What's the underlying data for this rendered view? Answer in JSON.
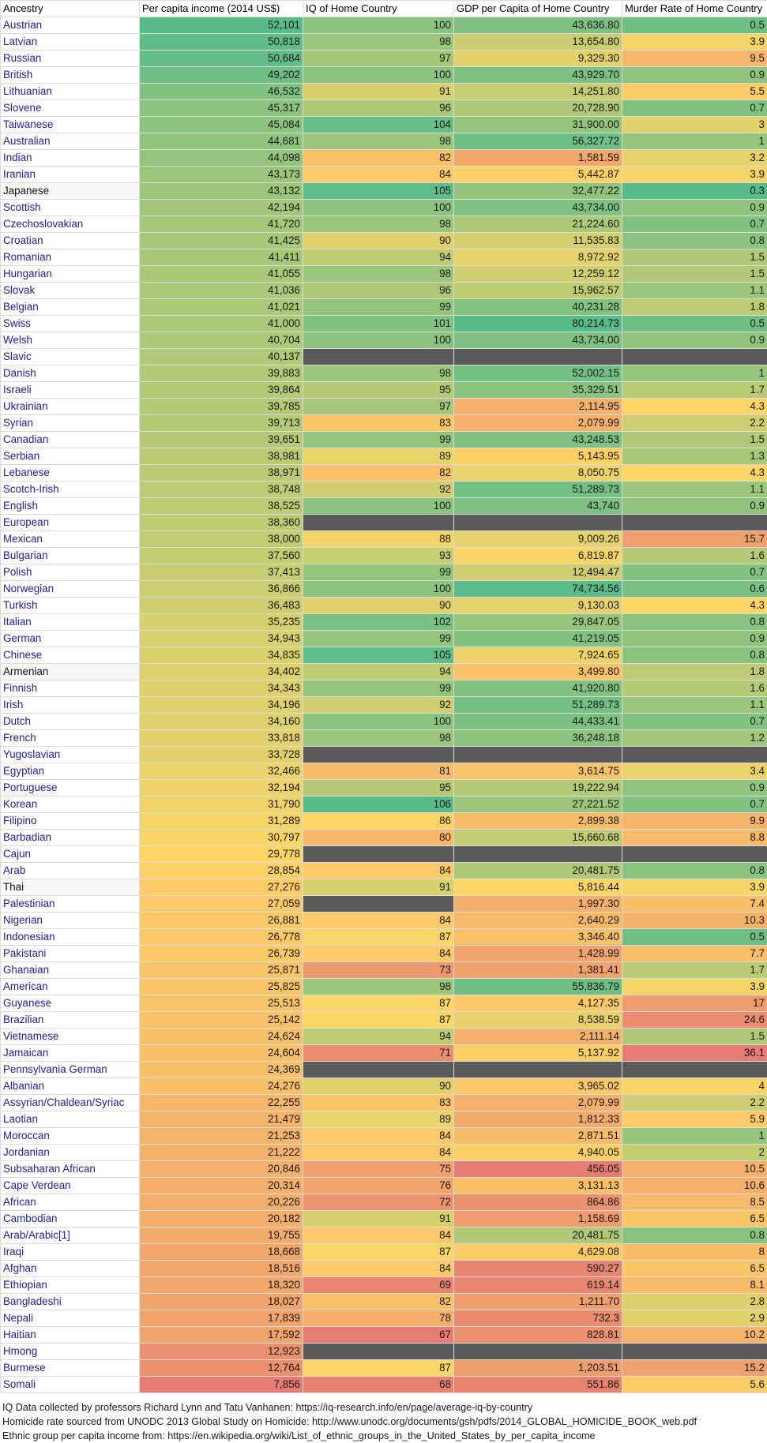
{
  "headers": [
    "Ancestry",
    "Per capita income (2014 US$)",
    "IQ of Home Country",
    "GDP per Capita of Home Country",
    "Murder Rate of Home Country"
  ],
  "rows": [
    {
      "ancestry": "Austrian",
      "income": "52,101",
      "iq": "100",
      "gdp": "43,636.80",
      "murder": "0.5"
    },
    {
      "ancestry": "Latvian",
      "income": "50,818",
      "iq": "98",
      "gdp": "13,654.80",
      "murder": "3.9"
    },
    {
      "ancestry": "Russian",
      "income": "50,684",
      "iq": "97",
      "gdp": "9,329.30",
      "murder": "9.5"
    },
    {
      "ancestry": "British",
      "income": "49,202",
      "iq": "100",
      "gdp": "43,929.70",
      "murder": "0.9"
    },
    {
      "ancestry": "Lithuanian",
      "income": "46,532",
      "iq": "91",
      "gdp": "14,251.80",
      "murder": "5.5"
    },
    {
      "ancestry": "Slovene",
      "income": "45,317",
      "iq": "96",
      "gdp": "20,728.90",
      "murder": "0.7"
    },
    {
      "ancestry": "Taiwanese",
      "income": "45,084",
      "iq": "104",
      "gdp": "31,900.00",
      "murder": "3"
    },
    {
      "ancestry": "Australian",
      "income": "44,681",
      "iq": "98",
      "gdp": "56,327.72",
      "murder": "1"
    },
    {
      "ancestry": "Indian",
      "income": "44,098",
      "iq": "82",
      "gdp": "1,581.59",
      "murder": "3.2"
    },
    {
      "ancestry": "Iranian",
      "income": "43,173",
      "iq": "84",
      "gdp": "5,442.87",
      "murder": "3.9"
    },
    {
      "ancestry": "Japanese",
      "income": "43,132",
      "iq": "105",
      "gdp": "32,477.22",
      "murder": "0.3"
    },
    {
      "ancestry": "Scottish",
      "income": "42,194",
      "iq": "100",
      "gdp": "43,734.00",
      "murder": "0.9"
    },
    {
      "ancestry": "Czechoslovakian",
      "income": "41,720",
      "iq": "98",
      "gdp": "21,224.60",
      "murder": "0.7"
    },
    {
      "ancestry": "Croatian",
      "income": "41,425",
      "iq": "90",
      "gdp": "11,535.83",
      "murder": "0.8"
    },
    {
      "ancestry": "Romanian",
      "income": "41,411",
      "iq": "94",
      "gdp": "8,972.92",
      "murder": "1.5"
    },
    {
      "ancestry": "Hungarian",
      "income": "41,055",
      "iq": "98",
      "gdp": "12,259.12",
      "murder": "1.5"
    },
    {
      "ancestry": "Slovak",
      "income": "41,036",
      "iq": "96",
      "gdp": "15,962.57",
      "murder": "1.1"
    },
    {
      "ancestry": "Belgian",
      "income": "41,021",
      "iq": "99",
      "gdp": "40,231.28",
      "murder": "1.8"
    },
    {
      "ancestry": "Swiss",
      "income": "41,000",
      "iq": "101",
      "gdp": "80,214.73",
      "murder": "0.5"
    },
    {
      "ancestry": "Welsh",
      "income": "40,704",
      "iq": "100",
      "gdp": "43,734.00",
      "murder": "0.9"
    },
    {
      "ancestry": "Slavic",
      "income": "40,137",
      "iq": null,
      "gdp": null,
      "murder": null
    },
    {
      "ancestry": "Danish",
      "income": "39,883",
      "iq": "98",
      "gdp": "52,002.15",
      "murder": "1"
    },
    {
      "ancestry": "Israeli",
      "income": "39,864",
      "iq": "95",
      "gdp": "35,329.51",
      "murder": "1.7"
    },
    {
      "ancestry": "Ukrainian",
      "income": "39,785",
      "iq": "97",
      "gdp": "2,114.95",
      "murder": "4.3"
    },
    {
      "ancestry": "Syrian",
      "income": "39,713",
      "iq": "83",
      "gdp": "2,079.99",
      "murder": "2.2"
    },
    {
      "ancestry": "Canadian",
      "income": "39,651",
      "iq": "99",
      "gdp": "43,248.53",
      "murder": "1.5"
    },
    {
      "ancestry": "Serbian",
      "income": "38,981",
      "iq": "89",
      "gdp": "5,143.95",
      "murder": "1.3"
    },
    {
      "ancestry": "Lebanese",
      "income": "38,971",
      "iq": "82",
      "gdp": "8,050.75",
      "murder": "4.3"
    },
    {
      "ancestry": "Scotch-Irish",
      "income": "38,748",
      "iq": "92",
      "gdp": "51,289.73",
      "murder": "1.1"
    },
    {
      "ancestry": "English",
      "income": "38,525",
      "iq": "100",
      "gdp": "43,740",
      "murder": "0.9"
    },
    {
      "ancestry": "European",
      "income": "38,360",
      "iq": null,
      "gdp": null,
      "murder": null
    },
    {
      "ancestry": "Mexican",
      "income": "38,000",
      "iq": "88",
      "gdp": "9,009.26",
      "murder": "15.7"
    },
    {
      "ancestry": "Bulgarian",
      "income": "37,560",
      "iq": "93",
      "gdp": "6,819.87",
      "murder": "1.6"
    },
    {
      "ancestry": "Polish",
      "income": "37,413",
      "iq": "99",
      "gdp": "12,494.47",
      "murder": "0.7"
    },
    {
      "ancestry": "Norwegian",
      "income": "36,866",
      "iq": "100",
      "gdp": "74,734.56",
      "murder": "0.6"
    },
    {
      "ancestry": "Turkish",
      "income": "36,483",
      "iq": "90",
      "gdp": "9,130.03",
      "murder": "4.3"
    },
    {
      "ancestry": "Italian",
      "income": "35,235",
      "iq": "102",
      "gdp": "29,847.05",
      "murder": "0.8"
    },
    {
      "ancestry": "German",
      "income": "34,943",
      "iq": "99",
      "gdp": "41,219.05",
      "murder": "0.9"
    },
    {
      "ancestry": "Chinese",
      "income": "34,835",
      "iq": "105",
      "gdp": "7,924.65",
      "murder": "0.8"
    },
    {
      "ancestry": "Armenian",
      "income": "34,402",
      "iq": "94",
      "gdp": "3,499.80",
      "murder": "1.8"
    },
    {
      "ancestry": "Finnish",
      "income": "34,343",
      "iq": "99",
      "gdp": "41,920.80",
      "murder": "1.6"
    },
    {
      "ancestry": "Irish",
      "income": "34,196",
      "iq": "92",
      "gdp": "51,289.73",
      "murder": "1.1"
    },
    {
      "ancestry": "Dutch",
      "income": "34,160",
      "iq": "100",
      "gdp": "44,433.41",
      "murder": "0.7"
    },
    {
      "ancestry": "French",
      "income": "33,818",
      "iq": "98",
      "gdp": "36,248.18",
      "murder": "1.2"
    },
    {
      "ancestry": "Yugoslavian",
      "income": "33,728",
      "iq": null,
      "gdp": null,
      "murder": null
    },
    {
      "ancestry": "Egyptian",
      "income": "32,466",
      "iq": "81",
      "gdp": "3,614.75",
      "murder": "3.4"
    },
    {
      "ancestry": "Portuguese",
      "income": "32,194",
      "iq": "95",
      "gdp": "19,222.94",
      "murder": "0.9"
    },
    {
      "ancestry": "Korean",
      "income": "31,790",
      "iq": "106",
      "gdp": "27,221.52",
      "murder": "0.7"
    },
    {
      "ancestry": "Filipino",
      "income": "31,289",
      "iq": "86",
      "gdp": "2,899.38",
      "murder": "9.9"
    },
    {
      "ancestry": "Barbadian",
      "income": "30,797",
      "iq": "80",
      "gdp": "15,660.68",
      "murder": "8.8"
    },
    {
      "ancestry": "Cajun",
      "income": "29,778",
      "iq": null,
      "gdp": null,
      "murder": null
    },
    {
      "ancestry": "Arab",
      "income": "28,854",
      "iq": "84",
      "gdp": "20,481.75",
      "murder": "0.8"
    },
    {
      "ancestry": "Thai",
      "income": "27,276",
      "iq": "91",
      "gdp": "5,816.44",
      "murder": "3.9"
    },
    {
      "ancestry": "Palestinian",
      "income": "27,059",
      "iq": null,
      "gdp": "1,997.30",
      "murder": "7.4"
    },
    {
      "ancestry": "Nigerian",
      "income": "26,881",
      "iq": "84",
      "gdp": "2,640.29",
      "murder": "10.3"
    },
    {
      "ancestry": "Indonesian",
      "income": "26,778",
      "iq": "87",
      "gdp": "3,346.40",
      "murder": "0.5"
    },
    {
      "ancestry": "Pakistani",
      "income": "26,739",
      "iq": "84",
      "gdp": "1,428.99",
      "murder": "7.7"
    },
    {
      "ancestry": "Ghanaian",
      "income": "25,871",
      "iq": "73",
      "gdp": "1,381.41",
      "murder": "1.7"
    },
    {
      "ancestry": "American",
      "income": "25,825",
      "iq": "98",
      "gdp": "55,836.79",
      "murder": "3.9"
    },
    {
      "ancestry": "Guyanese",
      "income": "25,513",
      "iq": "87",
      "gdp": "4,127.35",
      "murder": "17"
    },
    {
      "ancestry": "Brazilian",
      "income": "25,142",
      "iq": "87",
      "gdp": "8,538.59",
      "murder": "24.6"
    },
    {
      "ancestry": "Vietnamese",
      "income": "24,624",
      "iq": "94",
      "gdp": "2,111.14",
      "murder": "1.5"
    },
    {
      "ancestry": "Jamaican",
      "income": "24,604",
      "iq": "71",
      "gdp": "5,137.92",
      "murder": "36.1"
    },
    {
      "ancestry": "Pennsylvania German",
      "income": "24,369",
      "iq": null,
      "gdp": null,
      "murder": null
    },
    {
      "ancestry": "Albanian",
      "income": "24,276",
      "iq": "90",
      "gdp": "3,965.02",
      "murder": "4"
    },
    {
      "ancestry": "Assyrian/Chaldean/Syriac",
      "income": "22,255",
      "iq": "83",
      "gdp": "2,079.99",
      "murder": "2.2"
    },
    {
      "ancestry": "Laotian",
      "income": "21,479",
      "iq": "89",
      "gdp": "1,812.33",
      "murder": "5.9"
    },
    {
      "ancestry": "Moroccan",
      "income": "21,253",
      "iq": "84",
      "gdp": "2,871.51",
      "murder": "1"
    },
    {
      "ancestry": "Jordanian",
      "income": "21,222",
      "iq": "84",
      "gdp": "4,940.05",
      "murder": "2"
    },
    {
      "ancestry": "Subsaharan African",
      "income": "20,846",
      "iq": "75",
      "gdp": "456.05",
      "murder": "10.5"
    },
    {
      "ancestry": "Cape Verdean",
      "income": "20,314",
      "iq": "76",
      "gdp": "3,131.13",
      "murder": "10.6"
    },
    {
      "ancestry": "African",
      "income": "20,226",
      "iq": "72",
      "gdp": "864.86",
      "murder": "8.5"
    },
    {
      "ancestry": "Cambodian",
      "income": "20,182",
      "iq": "91",
      "gdp": "1,158.69",
      "murder": "6.5"
    },
    {
      "ancestry": "Arab/Arabic[1]",
      "income": "19,755",
      "iq": "84",
      "gdp": "20,481.75",
      "murder": "0.8"
    },
    {
      "ancestry": "Iraqi",
      "income": "18,668",
      "iq": "87",
      "gdp": "4,629.08",
      "murder": "8"
    },
    {
      "ancestry": "Afghan",
      "income": "18,516",
      "iq": "84",
      "gdp": "590.27",
      "murder": "6.5"
    },
    {
      "ancestry": "Ethiopian",
      "income": "18,320",
      "iq": "69",
      "gdp": "619.14",
      "murder": "8.1"
    },
    {
      "ancestry": "Bangladeshi",
      "income": "18,027",
      "iq": "82",
      "gdp": "1,211.70",
      "murder": "2.8"
    },
    {
      "ancestry": "Nepali",
      "income": "17,839",
      "iq": "78",
      "gdp": "732.3",
      "murder": "2.9"
    },
    {
      "ancestry": "Haitian",
      "income": "17,592",
      "iq": "67",
      "gdp": "828.81",
      "murder": "10.2"
    },
    {
      "ancestry": "Hmong",
      "income": "12,923",
      "iq": null,
      "gdp": null,
      "murder": null
    },
    {
      "ancestry": "Burmese",
      "income": "12,764",
      "iq": "87",
      "gdp": "1,203.51",
      "murder": "15.2"
    },
    {
      "ancestry": "Somali",
      "income": "7,856",
      "iq": "68",
      "gdp": "551.86",
      "murder": "5.6"
    }
  ],
  "notes": [
    "IQ Data collected by professors Richard Lynn and Tatu Vanhanen: https://iq-research.info/en/page/average-iq-by-country",
    "Homicide rate sourced from UNODC 2013 Global Study on Homicide: http://www.unodc.org/documents/gsh/pdfs/2014_GLOBAL_HOMICIDE_BOOK_web.pdf",
    "Ethnic group per capita income from: https://en.wikipedia.org/wiki/List_of_ethnic_groups_in_the_United_States_by_per_capita_income"
  ],
  "colors": {
    "good": "#57bb8a",
    "mid": "#ffd666",
    "bad": "#e67c73",
    "missing": "#5a5a5a"
  }
}
